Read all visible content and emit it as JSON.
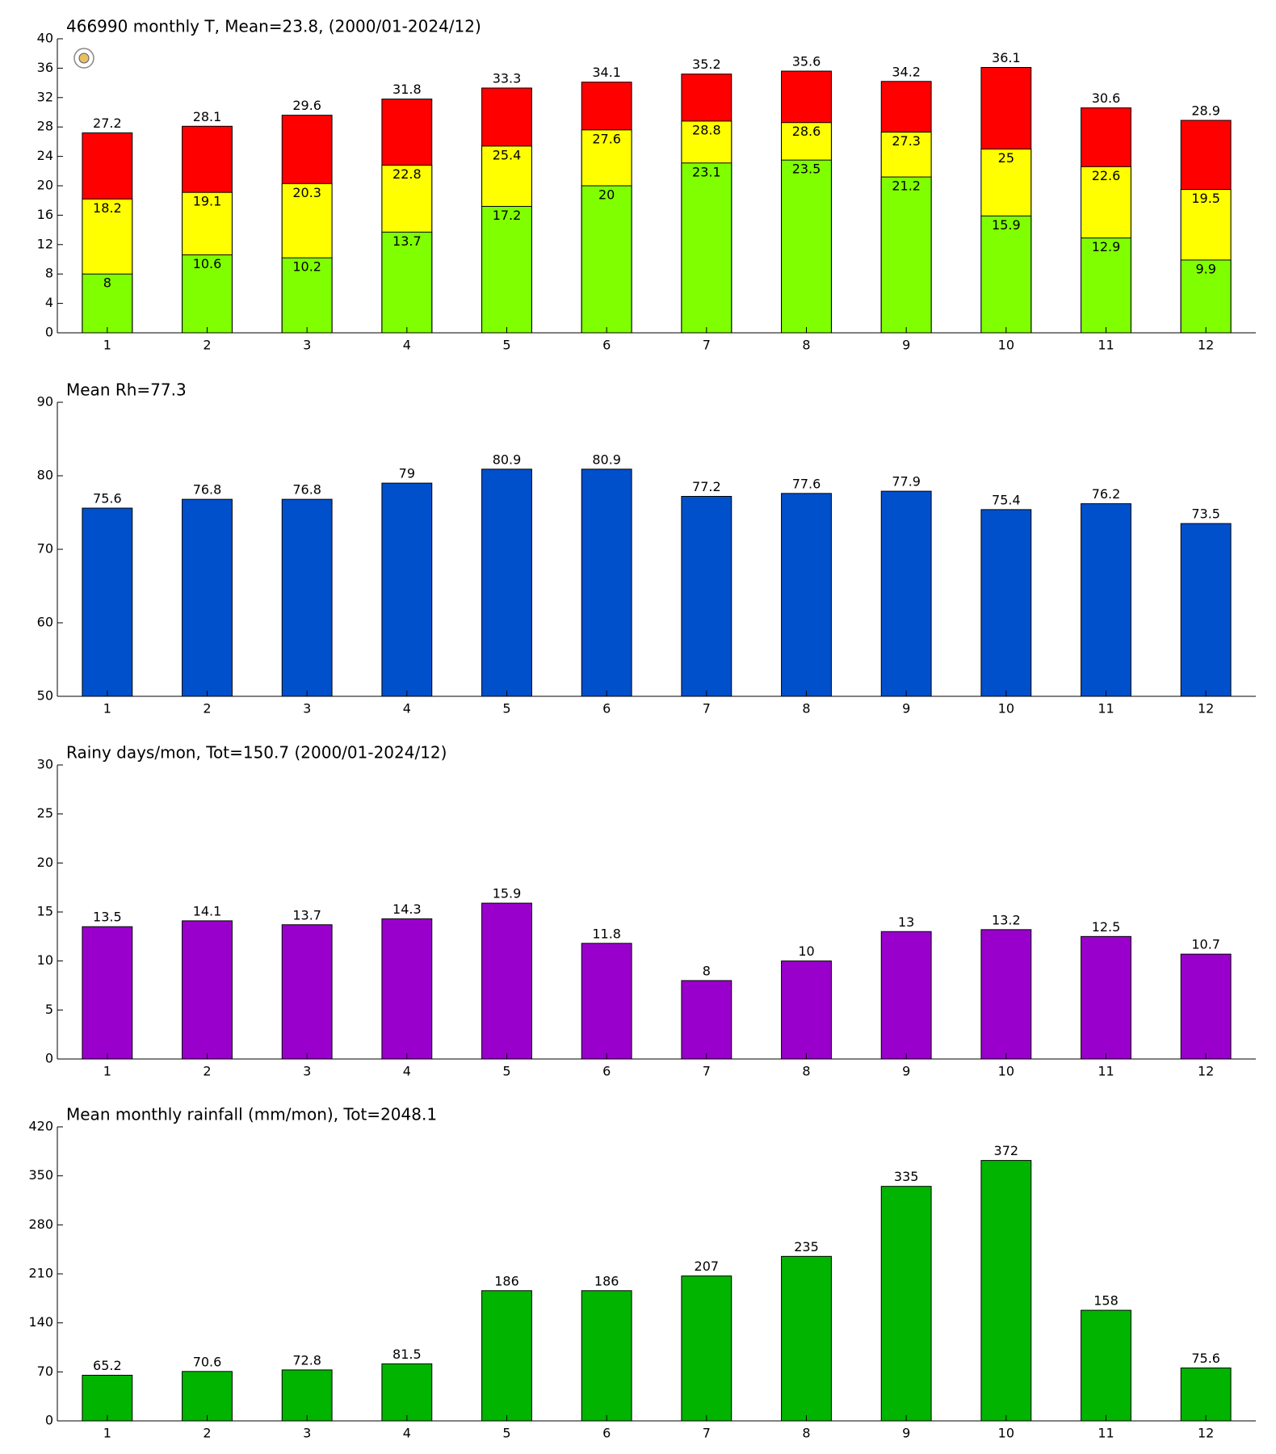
{
  "chart_data": [
    {
      "type": "bar",
      "title": "466990 monthly T, Mean=23.8, (2000/01-2024/12)",
      "categories": [
        "1",
        "2",
        "3",
        "4",
        "5",
        "6",
        "7",
        "8",
        "9",
        "10",
        "11",
        "12"
      ],
      "series": [
        {
          "color": "#80ff00",
          "values": [
            8,
            10.6,
            10.2,
            13.7,
            17.2,
            20,
            23.1,
            23.5,
            21.2,
            15.9,
            12.9,
            9.9
          ]
        },
        {
          "color": "#ffff00",
          "values": [
            18.2,
            19.1,
            20.3,
            22.8,
            25.4,
            27.6,
            28.8,
            28.6,
            27.3,
            25,
            22.6,
            19.5
          ]
        },
        {
          "color": "#ff0000",
          "values": [
            27.2,
            28.1,
            29.6,
            31.8,
            33.3,
            34.1,
            35.2,
            35.6,
            34.2,
            36.1,
            30.6,
            28.9
          ]
        }
      ],
      "ylim": [
        0,
        40
      ],
      "yticks": [
        0,
        4,
        8,
        12,
        16,
        20,
        24,
        28,
        32,
        36,
        40
      ]
    },
    {
      "type": "bar",
      "title": "Mean Rh=77.3",
      "categories": [
        "1",
        "2",
        "3",
        "4",
        "5",
        "6",
        "7",
        "8",
        "9",
        "10",
        "11",
        "12"
      ],
      "series": [
        {
          "color": "#0050cc",
          "values": [
            75.6,
            76.8,
            76.8,
            79,
            80.9,
            80.9,
            77.2,
            77.6,
            77.9,
            75.4,
            76.2,
            73.5
          ]
        }
      ],
      "ylim": [
        50,
        90
      ],
      "yticks": [
        50,
        60,
        70,
        80,
        90
      ]
    },
    {
      "type": "bar",
      "title": "Rainy days/mon, Tot=150.7 (2000/01-2024/12)",
      "categories": [
        "1",
        "2",
        "3",
        "4",
        "5",
        "6",
        "7",
        "8",
        "9",
        "10",
        "11",
        "12"
      ],
      "series": [
        {
          "color": "#9900cc",
          "values": [
            13.5,
            14.1,
            13.7,
            14.3,
            15.9,
            11.8,
            8,
            10,
            13,
            13.2,
            12.5,
            10.7
          ]
        }
      ],
      "ylim": [
        0,
        30
      ],
      "yticks": [
        0,
        5,
        10,
        15,
        20,
        25,
        30
      ]
    },
    {
      "type": "bar",
      "title": "Mean monthly rainfall (mm/mon), Tot=2048.1",
      "categories": [
        "1",
        "2",
        "3",
        "4",
        "5",
        "6",
        "7",
        "8",
        "9",
        "10",
        "11",
        "12"
      ],
      "series": [
        {
          "color": "#00b400",
          "values": [
            65.2,
            70.6,
            72.8,
            81.5,
            186,
            186,
            207,
            235,
            335,
            372,
            158,
            75.6
          ]
        }
      ],
      "ylim": [
        0,
        420
      ],
      "yticks": [
        0,
        70,
        140,
        210,
        280,
        350,
        420
      ]
    }
  ]
}
